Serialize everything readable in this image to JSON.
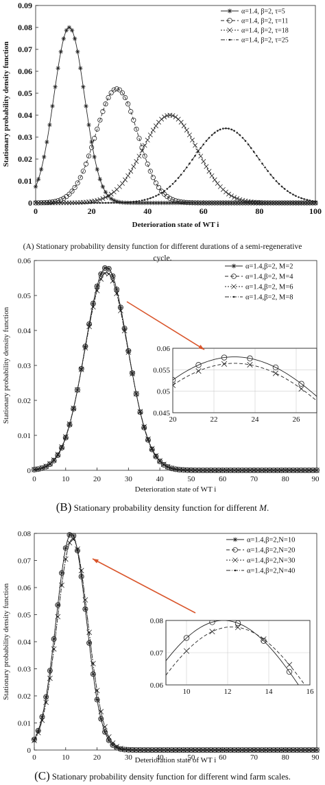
{
  "captions": {
    "a": "(A) Stationary probability density function for different durations of a semi-regenerative cycle.",
    "b_letter": "(B)",
    "b_text": "Stationary probability density function for different ",
    "b_var": "M",
    "b_end": ".",
    "c_letter": "(C)",
    "c_text": "Stationary probability density function for different wind farm scales."
  },
  "chart_data": [
    {
      "type": "line",
      "panel": "A",
      "xlabel": "Deterioration state of WT i",
      "ylabel": "Stationary probability density function",
      "xlim": [
        0,
        100
      ],
      "ylim": [
        0,
        0.09
      ],
      "xticks": [
        "0",
        "20",
        "40",
        "60",
        "80",
        "100"
      ],
      "yticks": [
        "0",
        "0.01",
        "0.02",
        "0.03",
        "0.04",
        "0.05",
        "0.06",
        "0.07",
        "0.08",
        "0.09"
      ],
      "grid": false,
      "legend_position": "top-right",
      "series": [
        {
          "name": "α=1.4, β=2, τ=5",
          "marker": "asterisk",
          "peak_x": 12,
          "peak_y": 0.08,
          "spread": 5.5
        },
        {
          "name": "α=1.4, β=2, τ=11",
          "marker": "circle",
          "peak_x": 29,
          "peak_y": 0.052,
          "spread": 7.5
        },
        {
          "name": "α=1.4, β=2, τ=18",
          "marker": "x",
          "peak_x": 48,
          "peak_y": 0.04,
          "spread": 9.8
        },
        {
          "name": "α=1.4, β=2, τ=25",
          "marker": "dot",
          "peak_x": 68,
          "peak_y": 0.034,
          "spread": 11.5
        }
      ]
    },
    {
      "type": "line",
      "panel": "B",
      "xlabel": "Deterioration state of WT i",
      "ylabel": "Stationary probability density function",
      "xlim": [
        0,
        90
      ],
      "ylim": [
        0,
        0.06
      ],
      "xticks": [
        "0",
        "10",
        "20",
        "30",
        "40",
        "50",
        "60",
        "70",
        "80",
        "90"
      ],
      "yticks": [
        "0",
        "0.01",
        "0.02",
        "0.03",
        "0.04",
        "0.05",
        "0.06"
      ],
      "grid": false,
      "legend_position": "top-right",
      "series": [
        {
          "name": "α=1.4,β=2, M=2",
          "marker": "asterisk",
          "peak_x": 23,
          "peak_y": 0.058,
          "spread": 6.8
        },
        {
          "name": "α=1.4,β=2, M=4",
          "marker": "circle",
          "peak_x": 23,
          "peak_y": 0.058,
          "spread": 6.8
        },
        {
          "name": "α=1.4,β=2, M=6",
          "marker": "x",
          "peak_x": 23,
          "peak_y": 0.0565,
          "spread": 6.9
        },
        {
          "name": "α=1.4,β=2, M=8",
          "marker": "dot",
          "peak_x": 23,
          "peak_y": 0.0565,
          "spread": 6.9
        }
      ],
      "inset": {
        "xlim": [
          20,
          27
        ],
        "ylim": [
          0.045,
          0.06
        ],
        "xticks": [
          "20",
          "22",
          "24",
          "26"
        ],
        "yticks": [
          "0.045",
          "0.05",
          "0.055",
          "0.06"
        ],
        "grid": true
      }
    },
    {
      "type": "line",
      "panel": "C",
      "xlabel": "Deterioration state of WT i",
      "ylabel": "Stationary probability density function",
      "xlim": [
        0,
        90
      ],
      "ylim": [
        0,
        0.08
      ],
      "xticks": [
        "0",
        "10",
        "20",
        "30",
        "40",
        "50",
        "60",
        "70",
        "80",
        "90"
      ],
      "yticks": [
        "0",
        "0.01",
        "0.02",
        "0.03",
        "0.04",
        "0.05",
        "0.06",
        "0.07",
        "0.08"
      ],
      "grid": false,
      "legend_position": "top-right",
      "series": [
        {
          "name": "α=1.4,β=2,N=10",
          "marker": "asterisk",
          "peak_x": 11.8,
          "peak_y": 0.08,
          "spread": 4.8
        },
        {
          "name": "α=1.4,β=2,N=20",
          "marker": "circle",
          "peak_x": 11.8,
          "peak_y": 0.08,
          "spread": 4.8
        },
        {
          "name": "α=1.4,β=2,N=30",
          "marker": "x",
          "peak_x": 12.2,
          "peak_y": 0.078,
          "spread": 4.9
        },
        {
          "name": "α=1.4,β=2,N=40",
          "marker": "dot",
          "peak_x": 12.2,
          "peak_y": 0.078,
          "spread": 4.9
        }
      ],
      "inset": {
        "xlim": [
          9,
          16
        ],
        "ylim": [
          0.06,
          0.08
        ],
        "xticks": [
          "10",
          "12",
          "14",
          "16"
        ],
        "yticks": [
          "0.06",
          "0.07",
          "0.08"
        ],
        "grid": true
      }
    }
  ],
  "colors": {
    "arrow": "#d9552b",
    "line": "#222222"
  }
}
